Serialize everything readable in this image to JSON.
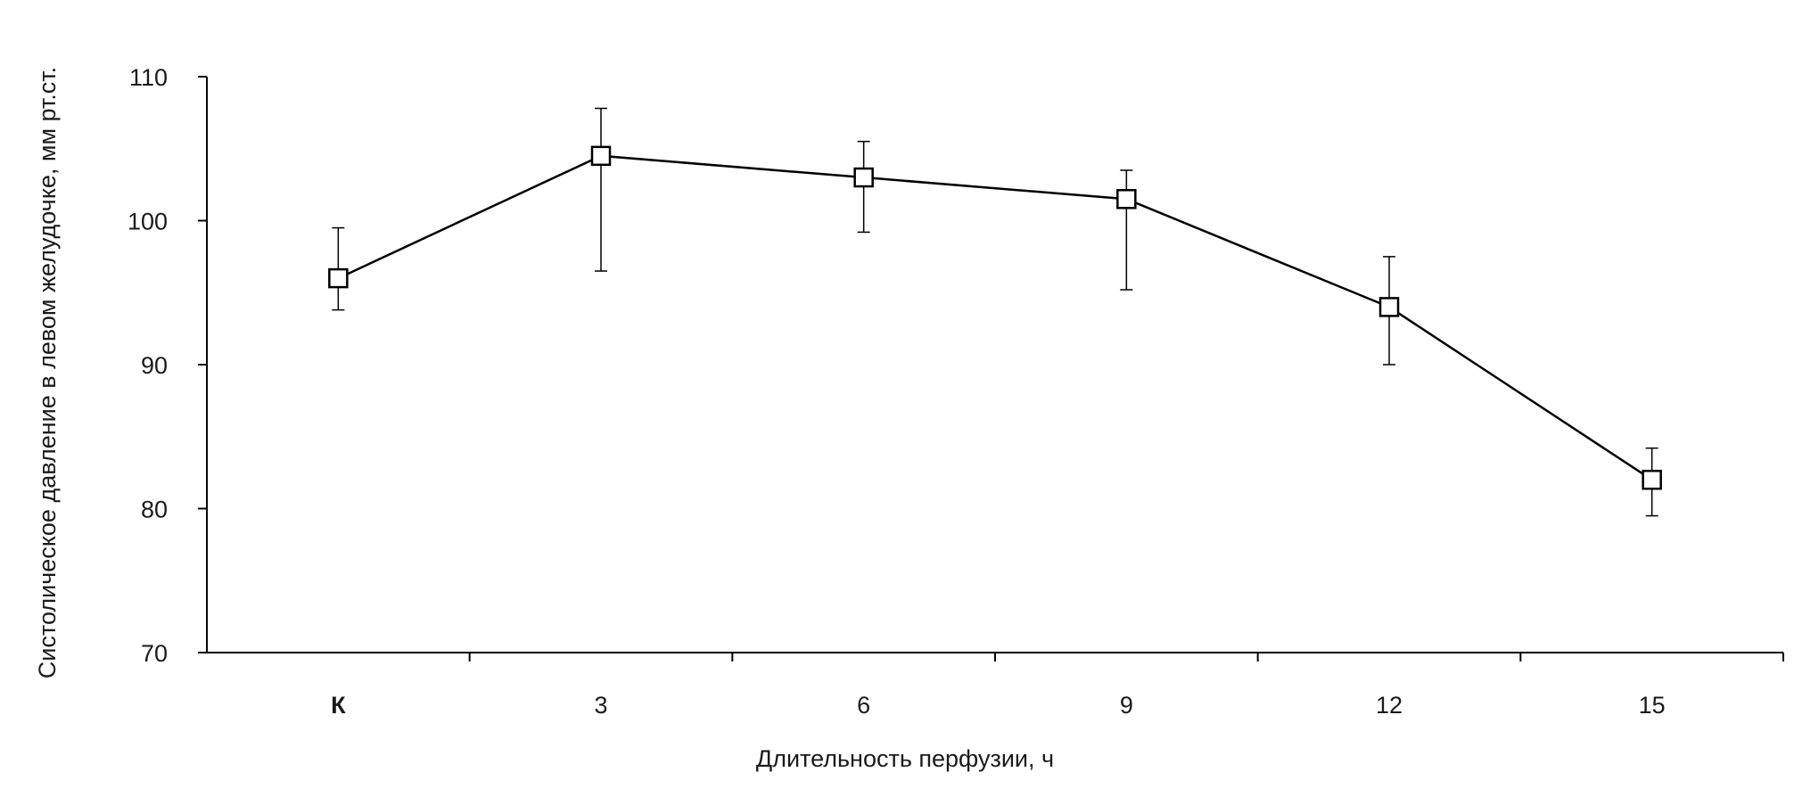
{
  "chart_data": {
    "type": "line",
    "title": "",
    "xlabel": "Длительность перфузии, ч",
    "ylabel": "Систолическое давление в левом желудочке, мм рт.ст.",
    "categories": [
      "К",
      "3",
      "6",
      "9",
      "12",
      "15"
    ],
    "y_ticks": [
      "70",
      "80",
      "90",
      "100",
      "110"
    ],
    "ylim": [
      70,
      110
    ],
    "grid": false,
    "legend": "none",
    "series": [
      {
        "values": [
          96.0,
          104.5,
          103.0,
          101.5,
          94.0,
          82.0
        ],
        "error_upper": [
          99.5,
          107.8,
          105.5,
          103.5,
          97.5,
          84.2
        ],
        "error_lower": [
          93.8,
          96.5,
          99.2,
          95.2,
          90.0,
          79.5
        ],
        "marker": "open-square",
        "color": "#000000"
      }
    ]
  }
}
